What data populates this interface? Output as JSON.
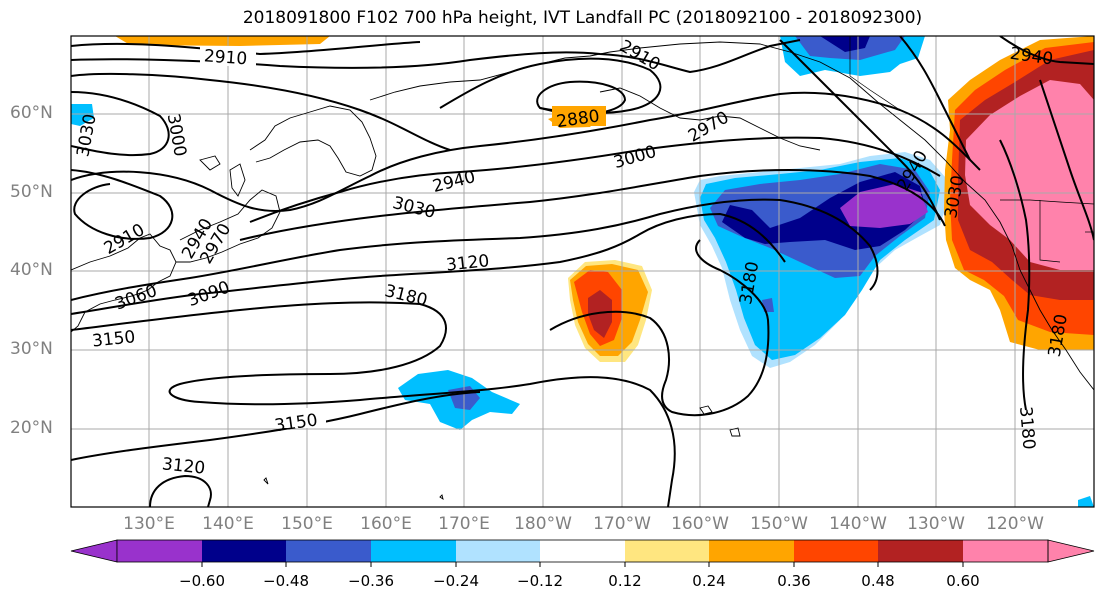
{
  "title": "2018091800 F102 700 hPa height, IVT Landfall PC (2018092100 - 2018092300)",
  "lat_labels": [
    "60°N",
    "50°N",
    "40°N",
    "30°N",
    "20°N"
  ],
  "lon_labels": [
    "130°E",
    "140°E",
    "150°E",
    "160°E",
    "170°E",
    "180°W",
    "170°W",
    "160°W",
    "150°W",
    "140°W",
    "130°W",
    "120°W"
  ],
  "contour_labels": [
    "2910",
    "2880",
    "2910",
    "3000",
    "3030",
    "2970",
    "2940",
    "3000",
    "2940",
    "3030",
    "2910",
    "2940",
    "2970",
    "3120",
    "3180",
    "3090",
    "3060",
    "3150",
    "3180",
    "3030",
    "3180",
    "3150",
    "3120",
    "3180",
    "2940"
  ],
  "colorbar": {
    "ticks": [
      "−0.60",
      "−0.48",
      "−0.36",
      "−0.24",
      "−0.12",
      "0.12",
      "0.24",
      "0.36",
      "0.48",
      "0.60"
    ],
    "colors": [
      "#9932cc",
      "#00008b",
      "#3a5bcc",
      "#00bfff",
      "#b0e2ff",
      "#ffffff",
      "#ffe680",
      "#ffa500",
      "#ff4500",
      "#b22222",
      "#ff82ab"
    ]
  },
  "colors": {
    "axis_label": "#808080",
    "grid": "#a9a9a9",
    "contour": "#000000"
  }
}
